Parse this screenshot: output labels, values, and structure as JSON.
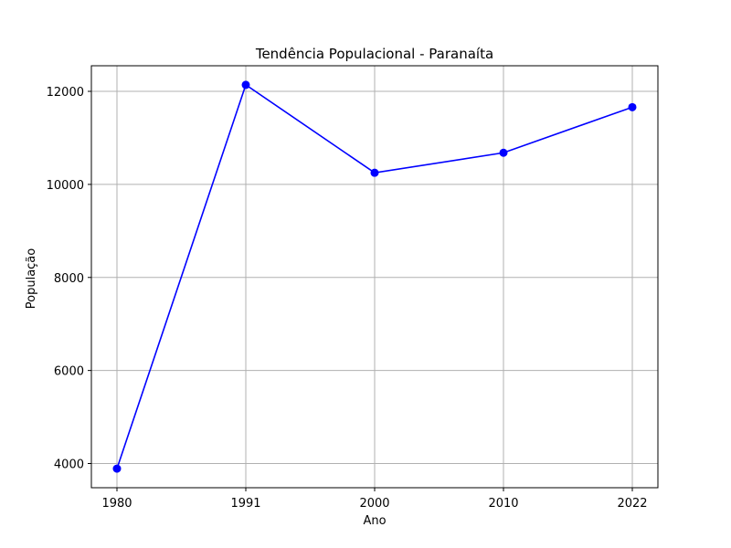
{
  "chart_data": {
    "type": "line",
    "title": "Tendência Populacional - Paranaíta",
    "xlabel": "Ano",
    "ylabel": "População",
    "categories": [
      "1980",
      "1991",
      "2000",
      "2010",
      "2022"
    ],
    "series": [
      {
        "values": [
          3890,
          12140,
          10250,
          10680,
          11660
        ],
        "color": "#0000ff",
        "marker": "circle"
      }
    ],
    "yticks": [
      4000,
      6000,
      8000,
      10000,
      12000
    ],
    "ylim": [
      3480,
      12550
    ],
    "grid": true
  }
}
